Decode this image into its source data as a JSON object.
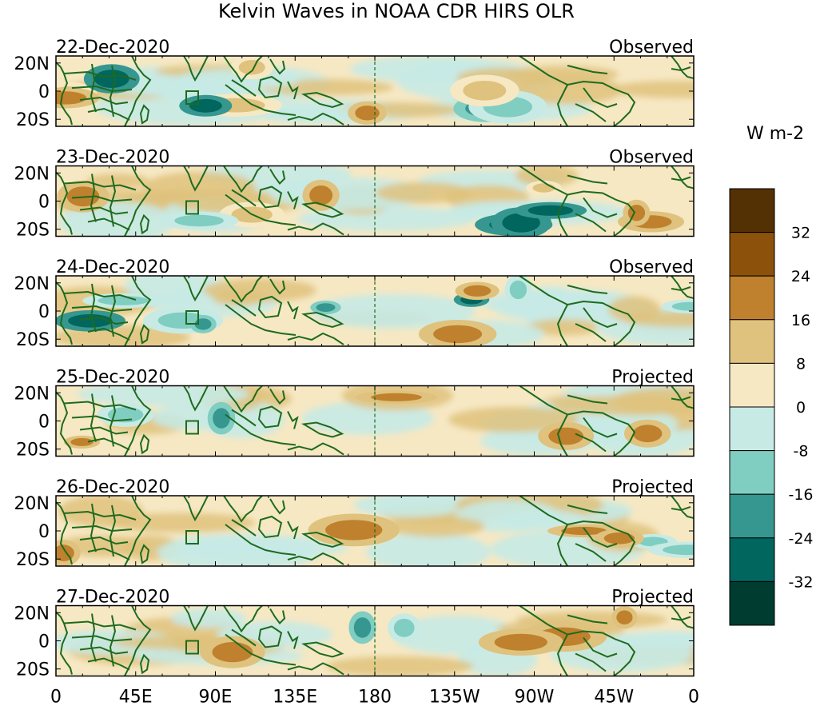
{
  "chart_data": {
    "type": "heatmap",
    "title": "Kelvin Waves in NOAA CDR HIRS OLR",
    "units": "W m-2",
    "x_ticks": [
      "0",
      "45E",
      "90E",
      "135E",
      "180",
      "135W",
      "90W",
      "45W",
      "0"
    ],
    "y_ticks": [
      "20N",
      "0",
      "20S"
    ],
    "xlim_deg_east": [
      0,
      360
    ],
    "ylim_deg": [
      -25,
      25
    ],
    "reference_longitude": "180",
    "colorbar": {
      "levels": [
        "32",
        "24",
        "16",
        "8",
        "0",
        "-8",
        "-16",
        "-24",
        "-32"
      ],
      "colors": [
        "#543005",
        "#8c510a",
        "#bf812d",
        "#dfc27d",
        "#f6e8c3",
        "#c7eae5",
        "#80cdc1",
        "#35978f",
        "#01665e",
        "#003c30"
      ]
    },
    "panels": [
      {
        "date": "22-Dec-2020",
        "label": "Observed"
      },
      {
        "date": "23-Dec-2020",
        "label": "Observed"
      },
      {
        "date": "24-Dec-2020",
        "label": "Observed"
      },
      {
        "date": "25-Dec-2020",
        "label": "Projected"
      },
      {
        "date": "26-Dec-2020",
        "label": "Projected"
      },
      {
        "date": "27-Dec-2020",
        "label": "Projected"
      }
    ]
  }
}
